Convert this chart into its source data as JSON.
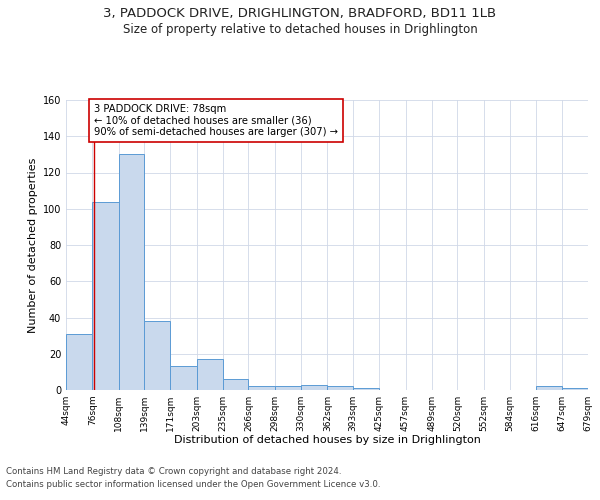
{
  "title1": "3, PADDOCK DRIVE, DRIGHLINGTON, BRADFORD, BD11 1LB",
  "title2": "Size of property relative to detached houses in Drighlington",
  "xlabel": "Distribution of detached houses by size in Drighlington",
  "ylabel": "Number of detached properties",
  "footnote1": "Contains HM Land Registry data © Crown copyright and database right 2024.",
  "footnote2": "Contains public sector information licensed under the Open Government Licence v3.0.",
  "annotation_title": "3 PADDOCK DRIVE: 78sqm",
  "annotation_line2": "← 10% of detached houses are smaller (36)",
  "annotation_line3": "90% of semi-detached houses are larger (307) →",
  "bar_left_edges": [
    44,
    76,
    108,
    139,
    171,
    203,
    235,
    266,
    298,
    330,
    362,
    393,
    425,
    457,
    489,
    520,
    552,
    584,
    616,
    647
  ],
  "bar_heights": [
    31,
    104,
    130,
    38,
    13,
    17,
    6,
    2,
    2,
    3,
    2,
    1,
    0,
    0,
    0,
    0,
    0,
    0,
    2,
    1
  ],
  "bar_widths": [
    32,
    32,
    31,
    32,
    32,
    32,
    31,
    32,
    32,
    32,
    31,
    32,
    32,
    32,
    31,
    32,
    32,
    32,
    31,
    32
  ],
  "tick_labels": [
    "44sqm",
    "76sqm",
    "108sqm",
    "139sqm",
    "171sqm",
    "203sqm",
    "235sqm",
    "266sqm",
    "298sqm",
    "330sqm",
    "362sqm",
    "393sqm",
    "425sqm",
    "457sqm",
    "489sqm",
    "520sqm",
    "552sqm",
    "584sqm",
    "616sqm",
    "647sqm",
    "679sqm"
  ],
  "bar_color": "#c9d9ed",
  "bar_edge_color": "#5b9bd5",
  "red_line_x": 78,
  "ylim": [
    0,
    160
  ],
  "yticks": [
    0,
    20,
    40,
    60,
    80,
    100,
    120,
    140,
    160
  ],
  "bg_color": "#ffffff",
  "grid_color": "#d0d8e8",
  "annotation_box_color": "#ffffff",
  "annotation_box_edge": "#cc0000",
  "red_line_color": "#cc0000",
  "title_fontsize": 9.5,
  "subtitle_fontsize": 8.5,
  "axis_label_fontsize": 8,
  "tick_fontsize": 6.5,
  "footnote_fontsize": 6.2,
  "annotation_fontsize": 7.2
}
